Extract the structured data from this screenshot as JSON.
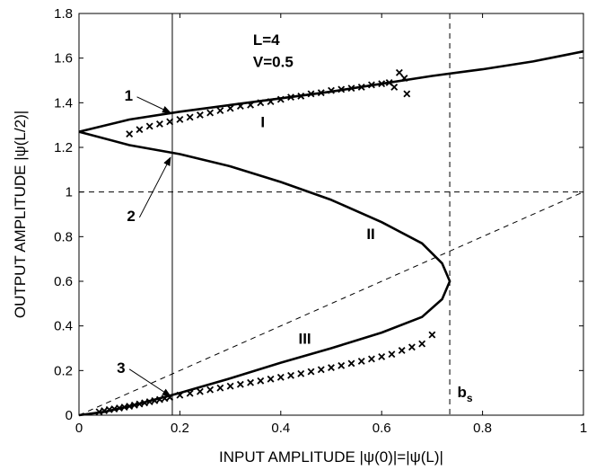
{
  "chart_data": {
    "type": "line",
    "xlabel": "INPUT  AMPLITUDE |ψ(0)|=|ψ(L)|",
    "ylabel": "OUTPUT  AMPLITUDE  |ψ(L/2)|",
    "xlim": [
      0,
      1
    ],
    "ylim": [
      0,
      1.8
    ],
    "xticks": [
      "0",
      "0.2",
      "0.4",
      "0.6",
      "0.8",
      "1"
    ],
    "yticks": [
      "0",
      "0.2",
      "0.4",
      "0.6",
      "0.8",
      "1",
      "1.2",
      "1.4",
      "1.6",
      "1.8"
    ],
    "grid": false,
    "params_text": [
      "L=4",
      "V=0.5"
    ],
    "series": [
      {
        "style": "solid-thick",
        "x": [
          0.0,
          0.1,
          0.2,
          0.3,
          0.4,
          0.5,
          0.6,
          0.7,
          0.8,
          0.9,
          1.0
        ],
        "y": [
          1.27,
          1.325,
          1.36,
          1.39,
          1.42,
          1.45,
          1.485,
          1.52,
          1.55,
          1.585,
          1.63
        ]
      },
      {
        "style": "solid-thick",
        "x": [
          0.0,
          0.1,
          0.2,
          0.3,
          0.4,
          0.5,
          0.6,
          0.68,
          0.72,
          0.735,
          0.72,
          0.68,
          0.6,
          0.5,
          0.4,
          0.3,
          0.2,
          0.1,
          0.05,
          0.0
        ],
        "y": [
          1.27,
          1.21,
          1.17,
          1.115,
          1.045,
          0.965,
          0.865,
          0.77,
          0.68,
          0.6,
          0.52,
          0.44,
          0.37,
          0.3,
          0.235,
          0.165,
          0.1,
          0.04,
          0.015,
          0.0
        ]
      },
      {
        "style": "markers-x",
        "x": [
          0.1,
          0.12,
          0.14,
          0.16,
          0.18,
          0.2,
          0.22,
          0.24,
          0.26,
          0.28,
          0.3,
          0.32,
          0.34,
          0.36,
          0.38,
          0.4,
          0.42,
          0.44,
          0.46,
          0.48,
          0.5,
          0.52,
          0.54,
          0.56,
          0.58,
          0.6,
          0.615,
          0.625,
          0.635,
          0.645,
          0.65
        ],
        "y": [
          1.26,
          1.28,
          1.295,
          1.305,
          1.315,
          1.325,
          1.335,
          1.345,
          1.355,
          1.365,
          1.375,
          1.385,
          1.39,
          1.4,
          1.405,
          1.415,
          1.425,
          1.43,
          1.44,
          1.445,
          1.455,
          1.46,
          1.465,
          1.47,
          1.48,
          1.485,
          1.49,
          1.47,
          1.535,
          1.51,
          1.44
        ]
      },
      {
        "style": "markers-x",
        "x": [
          0.04,
          0.05,
          0.06,
          0.07,
          0.08,
          0.09,
          0.1,
          0.11,
          0.12,
          0.13,
          0.14,
          0.15,
          0.16,
          0.17,
          0.18,
          0.2,
          0.22,
          0.24,
          0.26,
          0.28,
          0.3,
          0.32,
          0.34,
          0.36,
          0.38,
          0.4,
          0.42,
          0.44,
          0.46,
          0.48,
          0.5,
          0.52,
          0.54,
          0.56,
          0.58,
          0.6,
          0.62,
          0.64,
          0.66,
          0.68,
          0.7
        ],
        "y": [
          0.015,
          0.02,
          0.025,
          0.028,
          0.032,
          0.036,
          0.04,
          0.045,
          0.05,
          0.055,
          0.06,
          0.065,
          0.07,
          0.075,
          0.08,
          0.09,
          0.098,
          0.106,
          0.114,
          0.122,
          0.13,
          0.138,
          0.146,
          0.154,
          0.162,
          0.17,
          0.178,
          0.186,
          0.195,
          0.204,
          0.213,
          0.222,
          0.232,
          0.242,
          0.252,
          0.262,
          0.273,
          0.29,
          0.305,
          0.32,
          0.36
        ]
      }
    ],
    "reference_lines": [
      {
        "type": "hline",
        "y": 1.0,
        "style": "dashed"
      },
      {
        "type": "vline",
        "x": 0.735,
        "style": "dashed"
      },
      {
        "type": "vline",
        "x": 0.185,
        "style": "solid-thin"
      },
      {
        "type": "diagonal",
        "x": [
          0,
          1
        ],
        "y": [
          0,
          1
        ],
        "style": "dashed"
      }
    ],
    "annotations": [
      {
        "text": "1",
        "x": 0.09,
        "y": 1.41,
        "arrow_to": [
          0.185,
          1.355
        ]
      },
      {
        "text": "2",
        "x": 0.095,
        "y": 0.87,
        "arrow_to": [
          0.185,
          1.155
        ]
      },
      {
        "text": "3",
        "x": 0.075,
        "y": 0.19,
        "arrow_to": [
          0.185,
          0.085
        ]
      },
      {
        "text": "I",
        "x": 0.36,
        "y": 1.29
      },
      {
        "text": "II",
        "x": 0.57,
        "y": 0.79
      },
      {
        "text": "III",
        "x": 0.435,
        "y": 0.32
      },
      {
        "text": "b",
        "sub": "s",
        "x": 0.75,
        "y": 0.08
      }
    ]
  }
}
